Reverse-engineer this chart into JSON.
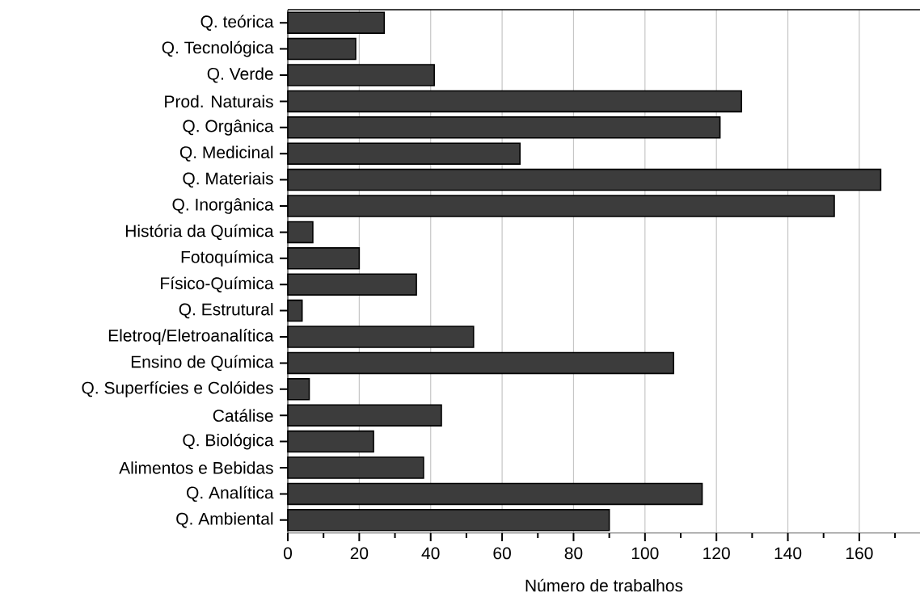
{
  "chart_data": {
    "type": "bar",
    "orientation": "horizontal",
    "xlabel": "Número de trabalhos",
    "categories": [
      "Q. teórica",
      "Q. Tecnológica",
      "Q. Verde",
      "Prod. Naturais",
      "Q. Orgânica",
      "Q. Medicinal",
      "Q. Materiais",
      "Q. Inorgânica",
      "História da Química",
      "Fotoquímica",
      "Físico-Química",
      "Q. Estrutural",
      "Eletroq/Eletroanalítica",
      "Ensino de Química",
      "Q. Superfícies e Colóides",
      "Catálise",
      "Q. Biológica",
      "Alimentos e Bebidas",
      "Q. Analítica",
      "Q. Ambiental"
    ],
    "values": [
      27,
      19,
      41,
      127,
      121,
      65,
      166,
      153,
      7,
      20,
      36,
      4,
      52,
      108,
      6,
      43,
      24,
      38,
      116,
      90
    ],
    "color": "#3c3c3c",
    "xlim": [
      0,
      177
    ],
    "xticks": [
      0,
      {
        "value": 10,
        "label": null
      },
      20,
      {
        "value": 30,
        "label": null
      },
      40,
      {
        "value": 50,
        "label": null
      },
      60,
      {
        "value": 70,
        "label": null
      },
      80,
      {
        "value": 90,
        "label": null
      },
      100,
      {
        "value": 110,
        "label": null
      },
      120,
      {
        "value": 130,
        "label": null
      },
      140,
      {
        "value": 150,
        "label": null
      },
      160,
      {
        "value": 170,
        "label": null
      }
    ],
    "grid": "x"
  }
}
